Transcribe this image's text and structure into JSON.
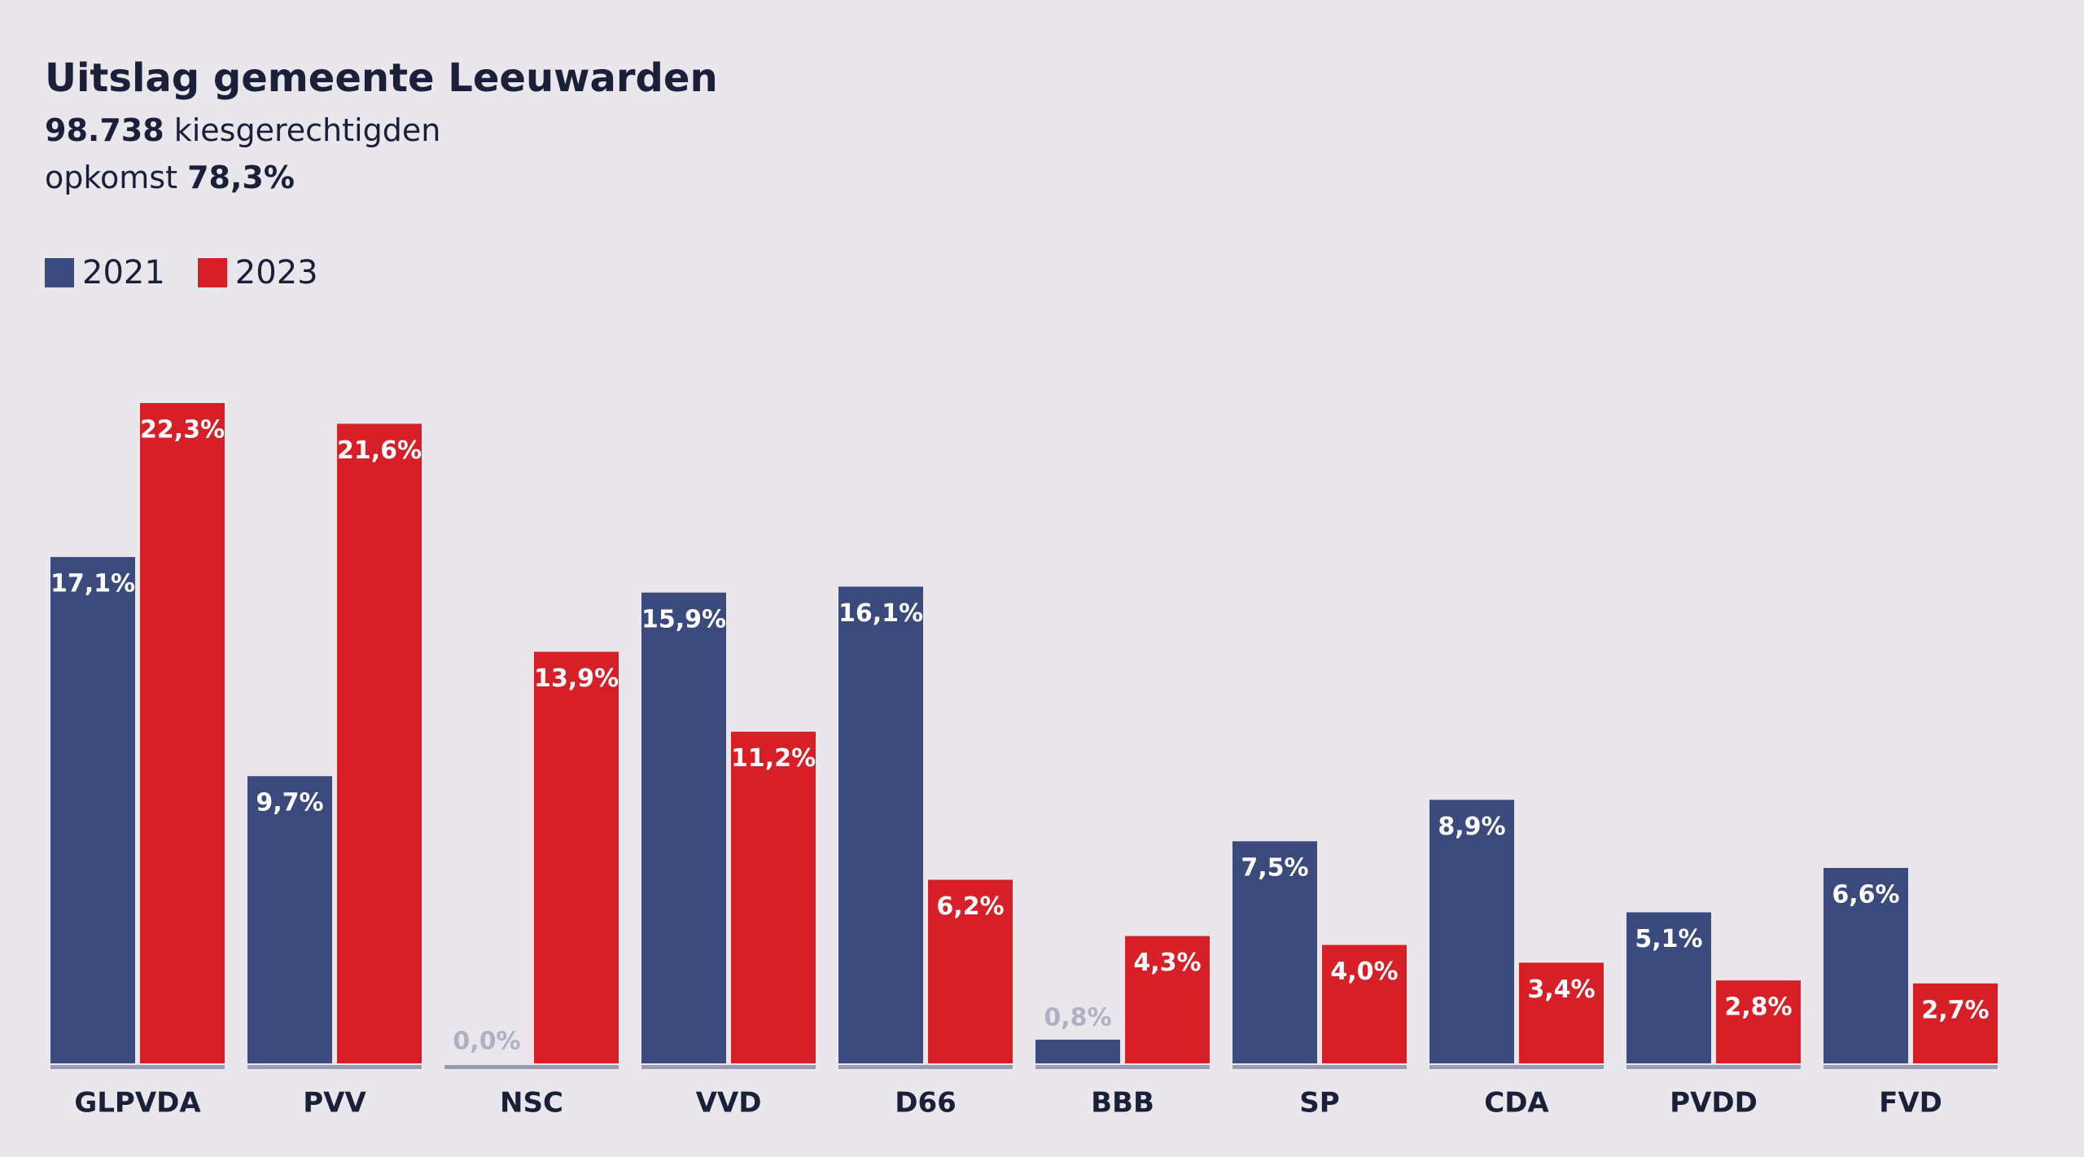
{
  "chart_data": {
    "type": "bar",
    "title": "Uitslag gemeente Leeuwarden",
    "eligible_voters": "98.738",
    "eligible_label": "kiesgerechtigden",
    "turnout_label": "opkomst",
    "turnout": "78,3%",
    "categories": [
      "GLPVDA",
      "PVV",
      "NSC",
      "VVD",
      "D66",
      "BBB",
      "SP",
      "CDA",
      "PVDD",
      "FVD"
    ],
    "series": [
      {
        "name": "2021",
        "color": "#3b4a7c",
        "values": [
          17.1,
          9.7,
          0.0,
          15.9,
          16.1,
          0.8,
          7.5,
          8.9,
          5.1,
          6.6
        ],
        "value_labels": [
          "17,1%",
          "9,7%",
          "0,0%",
          "15,9%",
          "16,1%",
          "0,8%",
          "7,5%",
          "8,9%",
          "5,1%",
          "6,6%"
        ]
      },
      {
        "name": "2023",
        "color": "#d61f26",
        "values": [
          22.3,
          21.6,
          13.9,
          11.2,
          6.2,
          4.3,
          4.0,
          3.4,
          2.8,
          2.7
        ],
        "value_labels": [
          "22,3%",
          "21,6%",
          "13,9%",
          "11,2%",
          "6,2%",
          "4,3%",
          "4,0%",
          "3,4%",
          "2,8%",
          "2,7%"
        ]
      }
    ]
  }
}
